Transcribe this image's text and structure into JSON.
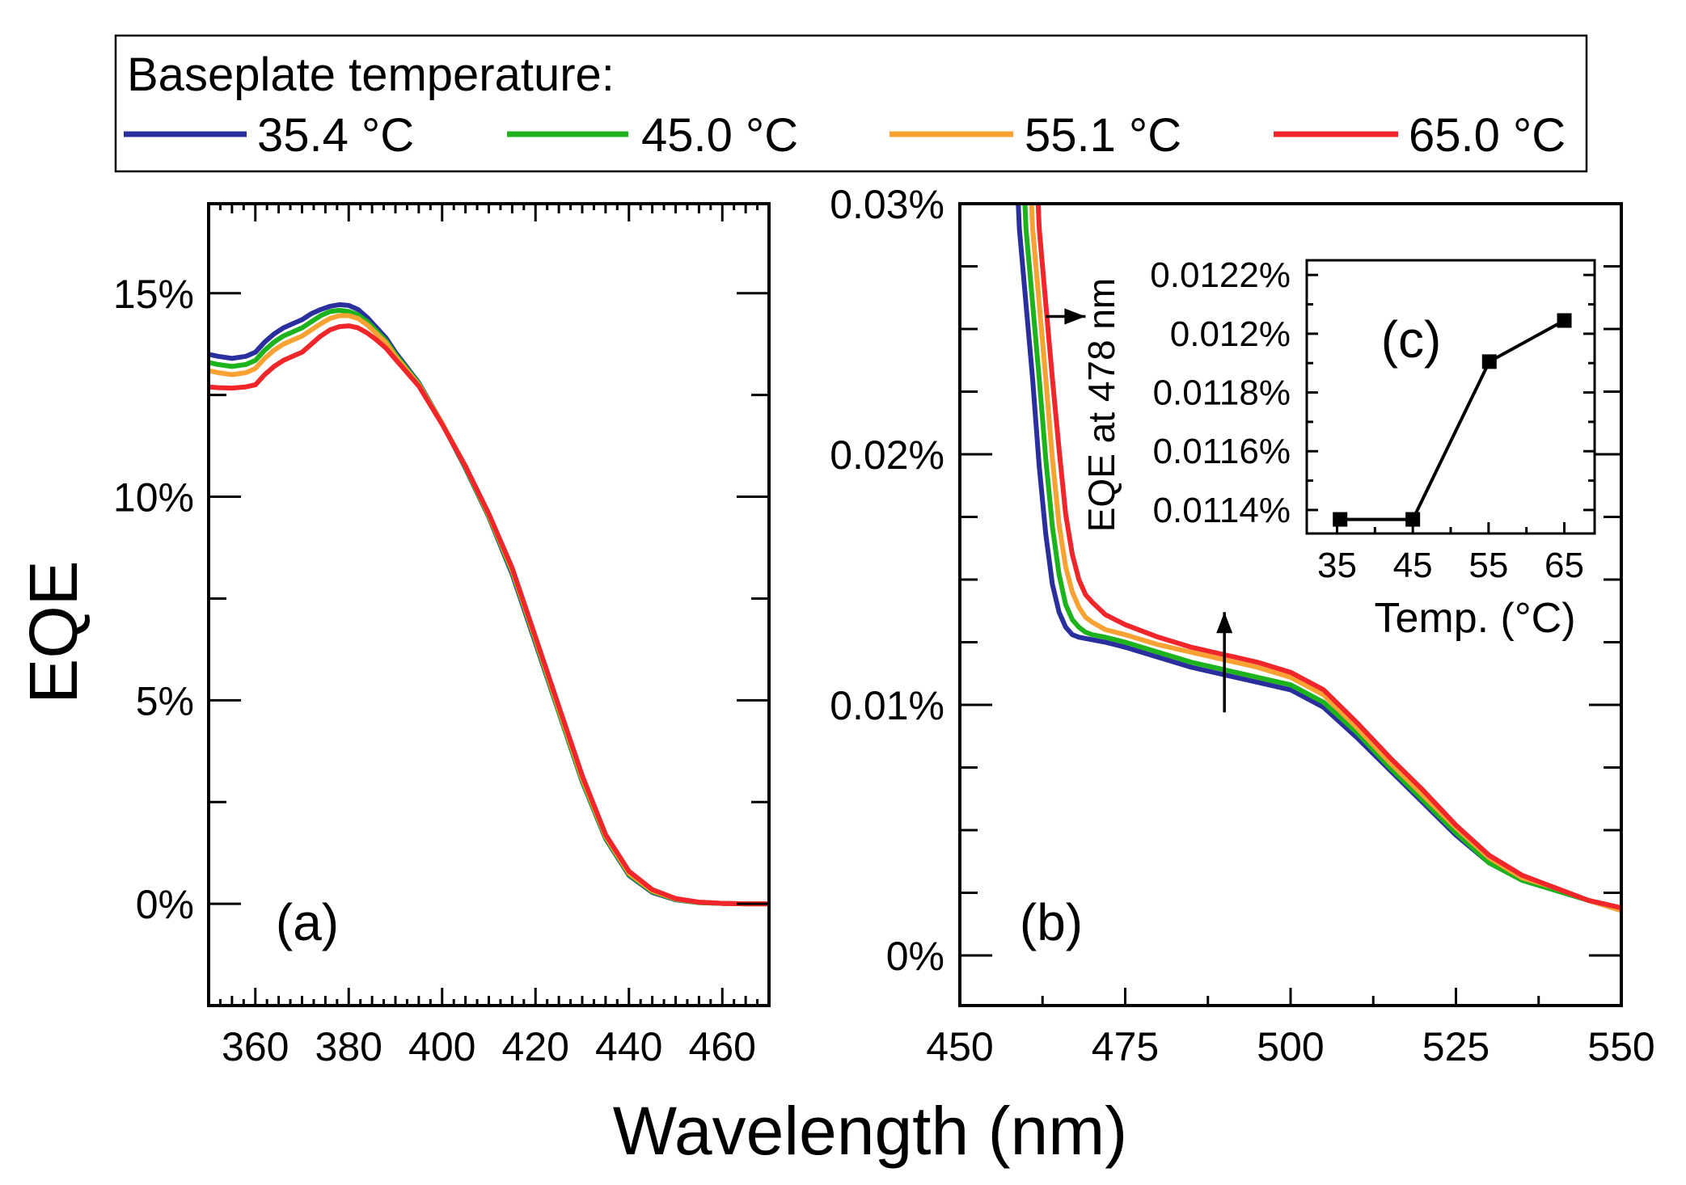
{
  "legend": {
    "title": "Baseplate temperature:",
    "entries": [
      {
        "label": "35.4 °C",
        "color": "#2b2f9e"
      },
      {
        "label": "45.0 °C",
        "color": "#1db31d"
      },
      {
        "label": "55.1 °C",
        "color": "#f7a233"
      },
      {
        "label": "65.0 °C",
        "color": "#f0262b"
      }
    ]
  },
  "axes": {
    "shared_xlabel": "Wavelength (nm)",
    "shared_ylabel": "EQE"
  },
  "chart_data": [
    {
      "id": "panel-a",
      "type": "line",
      "panel_label": "(a)",
      "xlabel": "Wavelength (nm)",
      "ylabel": "EQE",
      "xlim": [
        350,
        470
      ],
      "ylim": [
        -2.5,
        17.2
      ],
      "x_ticks": [
        360,
        380,
        400,
        420,
        440,
        460
      ],
      "x_tick_labels": [
        "360",
        "380",
        "400",
        "420",
        "440",
        "460"
      ],
      "y_ticks": [
        0,
        5,
        10,
        15
      ],
      "y_tick_labels": [
        "0%",
        "5%",
        "10%",
        "15%"
      ],
      "series": [
        {
          "name": "35.4 °C",
          "color": "#2b2f9e",
          "x": [
            350,
            352,
            355,
            358,
            360,
            362,
            364,
            366,
            368,
            370,
            372,
            374,
            376,
            378,
            380,
            382,
            384,
            386,
            388,
            390,
            395,
            400,
            405,
            410,
            415,
            420,
            425,
            430,
            435,
            440,
            445,
            450,
            455,
            460,
            465,
            470
          ],
          "y": [
            13.5,
            13.45,
            13.4,
            13.45,
            13.55,
            13.8,
            14.0,
            14.15,
            14.25,
            14.35,
            14.5,
            14.6,
            14.68,
            14.72,
            14.7,
            14.6,
            14.4,
            14.15,
            13.9,
            13.55,
            12.8,
            11.8,
            10.7,
            9.5,
            8.1,
            6.4,
            4.7,
            3.0,
            1.6,
            0.7,
            0.28,
            0.1,
            0.03,
            0.01,
            0,
            0
          ]
        },
        {
          "name": "45.0 °C",
          "color": "#1db31d",
          "x": [
            350,
            352,
            355,
            358,
            360,
            362,
            364,
            366,
            368,
            370,
            372,
            374,
            376,
            378,
            380,
            382,
            384,
            386,
            388,
            390,
            395,
            400,
            405,
            410,
            415,
            420,
            425,
            430,
            435,
            440,
            445,
            450,
            455,
            460,
            465,
            470
          ],
          "y": [
            13.3,
            13.25,
            13.2,
            13.25,
            13.35,
            13.6,
            13.8,
            13.95,
            14.05,
            14.15,
            14.3,
            14.45,
            14.55,
            14.58,
            14.55,
            14.47,
            14.3,
            14.07,
            13.83,
            13.5,
            12.78,
            11.8,
            10.72,
            9.52,
            8.15,
            6.45,
            4.72,
            3.02,
            1.62,
            0.72,
            0.3,
            0.11,
            0.03,
            0.01,
            0,
            0
          ]
        },
        {
          "name": "55.1 °C",
          "color": "#f7a233",
          "x": [
            350,
            352,
            355,
            358,
            360,
            362,
            364,
            366,
            368,
            370,
            372,
            374,
            376,
            378,
            380,
            382,
            384,
            386,
            388,
            390,
            395,
            400,
            405,
            410,
            415,
            420,
            425,
            430,
            435,
            440,
            445,
            450,
            455,
            460,
            465,
            470
          ],
          "y": [
            13.1,
            13.05,
            13.0,
            13.05,
            13.15,
            13.4,
            13.6,
            13.75,
            13.85,
            13.95,
            14.1,
            14.25,
            14.38,
            14.45,
            14.45,
            14.38,
            14.22,
            14.0,
            13.78,
            13.45,
            12.75,
            11.8,
            10.75,
            9.55,
            8.2,
            6.5,
            4.78,
            3.08,
            1.66,
            0.75,
            0.32,
            0.12,
            0.04,
            0.01,
            0,
            0
          ]
        },
        {
          "name": "65.0 °C",
          "color": "#f0262b",
          "x": [
            350,
            352,
            355,
            358,
            360,
            362,
            364,
            366,
            368,
            370,
            372,
            374,
            376,
            378,
            380,
            382,
            384,
            386,
            388,
            390,
            395,
            400,
            405,
            410,
            415,
            420,
            425,
            430,
            435,
            440,
            445,
            450,
            455,
            460,
            465,
            470
          ],
          "y": [
            12.7,
            12.68,
            12.67,
            12.7,
            12.75,
            13.0,
            13.2,
            13.35,
            13.45,
            13.55,
            13.75,
            13.95,
            14.1,
            14.18,
            14.2,
            14.15,
            14.02,
            13.85,
            13.65,
            13.38,
            12.72,
            11.78,
            10.75,
            9.58,
            8.25,
            6.55,
            4.85,
            3.15,
            1.7,
            0.8,
            0.35,
            0.13,
            0.04,
            0.01,
            0,
            0
          ]
        }
      ]
    },
    {
      "id": "panel-b",
      "type": "line",
      "panel_label": "(b)",
      "xlabel": "Wavelength (nm)",
      "ylabel": "EQE",
      "xlim": [
        450,
        550
      ],
      "ylim": [
        -0.002,
        0.03
      ],
      "x_ticks": [
        450,
        475,
        500,
        525,
        550
      ],
      "x_tick_labels": [
        "450",
        "475",
        "500",
        "525",
        "550"
      ],
      "y_ticks": [
        0,
        0.01,
        0.02,
        0.03
      ],
      "y_tick_labels": [
        "0%",
        "0.01%",
        "0.02%",
        "0.03%"
      ],
      "series": [
        {
          "name": "35.4 °C",
          "color": "#2b2f9e",
          "x": [
            458.5,
            459,
            460,
            461,
            462,
            463,
            464,
            465,
            466,
            467,
            468,
            470,
            472,
            475,
            480,
            485,
            490,
            495,
            500,
            505,
            510,
            515,
            520,
            525,
            530,
            535,
            540,
            545,
            550
          ],
          "y": [
            0.032,
            0.029,
            0.026,
            0.023,
            0.0195,
            0.0168,
            0.0148,
            0.0137,
            0.0131,
            0.0128,
            0.0127,
            0.0126,
            0.0125,
            0.0123,
            0.0119,
            0.0115,
            0.0112,
            0.0109,
            0.0106,
            0.0099,
            0.0087,
            0.0074,
            0.0061,
            0.0048,
            0.0037,
            0.003,
            0.0026,
            0.0022,
            0.0018
          ]
        },
        {
          "name": "45.0 °C",
          "color": "#1db31d",
          "x": [
            459.5,
            460,
            461,
            462,
            463,
            464,
            465,
            466,
            467,
            468,
            469,
            470,
            472,
            475,
            480,
            485,
            490,
            495,
            500,
            505,
            510,
            515,
            520,
            525,
            530,
            535,
            540,
            545,
            550
          ],
          "y": [
            0.032,
            0.029,
            0.026,
            0.023,
            0.0198,
            0.0171,
            0.0152,
            0.014,
            0.0134,
            0.0131,
            0.0129,
            0.0128,
            0.0127,
            0.0125,
            0.0121,
            0.0117,
            0.0114,
            0.0111,
            0.0108,
            0.0101,
            0.0089,
            0.0075,
            0.0062,
            0.0049,
            0.0037,
            0.003,
            0.0026,
            0.0022,
            0.0018
          ]
        },
        {
          "name": "55.1 °C",
          "color": "#f7a233",
          "x": [
            460.5,
            461,
            462,
            463,
            464,
            465,
            466,
            467,
            468,
            469,
            470,
            472,
            475,
            480,
            485,
            490,
            495,
            500,
            505,
            510,
            515,
            520,
            525,
            530,
            535,
            540,
            545,
            550
          ],
          "y": [
            0.032,
            0.029,
            0.026,
            0.023,
            0.0198,
            0.0172,
            0.0155,
            0.0145,
            0.0139,
            0.0135,
            0.0133,
            0.013,
            0.0128,
            0.0124,
            0.0121,
            0.0118,
            0.0115,
            0.0111,
            0.0104,
            0.0091,
            0.0077,
            0.0064,
            0.0051,
            0.0039,
            0.0031,
            0.0027,
            0.0022,
            0.0018
          ]
        },
        {
          "name": "65.0 °C",
          "color": "#f0262b",
          "x": [
            461.5,
            462,
            463,
            464,
            465,
            466,
            467,
            468,
            469,
            470,
            472,
            475,
            480,
            485,
            490,
            495,
            500,
            505,
            510,
            515,
            520,
            525,
            530,
            535,
            540,
            545,
            550
          ],
          "y": [
            0.032,
            0.029,
            0.026,
            0.023,
            0.0202,
            0.0176,
            0.016,
            0.015,
            0.0144,
            0.0141,
            0.0136,
            0.0132,
            0.0127,
            0.0123,
            0.012,
            0.0117,
            0.0113,
            0.0106,
            0.0093,
            0.0079,
            0.0066,
            0.0052,
            0.004,
            0.0032,
            0.0027,
            0.0022,
            0.0019
          ]
        }
      ],
      "annotations": [
        {
          "type": "arrow",
          "from": [
            463,
            0.0255
          ],
          "to": [
            469,
            0.0255
          ]
        },
        {
          "type": "arrow",
          "from": [
            490,
            0.0097
          ],
          "to": [
            490,
            0.0137
          ]
        }
      ]
    },
    {
      "id": "panel-c",
      "type": "line",
      "panel_label": "(c)",
      "xlabel": "Temp. (°C)",
      "ylabel": "EQE at 478 nm",
      "xlim": [
        31,
        69
      ],
      "ylim": [
        0.01132,
        0.01225
      ],
      "x_ticks": [
        35,
        45,
        55,
        65
      ],
      "x_tick_labels": [
        "35",
        "45",
        "55",
        "65"
      ],
      "y_ticks": [
        0.0114,
        0.0116,
        0.0118,
        0.012,
        0.0122
      ],
      "y_tick_labels": [
        "0.0114%",
        "0.0116%",
        "0.0118%",
        "0.012%",
        "0.0122%"
      ],
      "series": [
        {
          "name": "EQE at 478 nm",
          "color": "#000000",
          "marker": "square",
          "x": [
            35.4,
            45.0,
            55.1,
            65.0
          ],
          "y": [
            0.011368,
            0.011368,
            0.011905,
            0.012045
          ]
        }
      ]
    }
  ]
}
